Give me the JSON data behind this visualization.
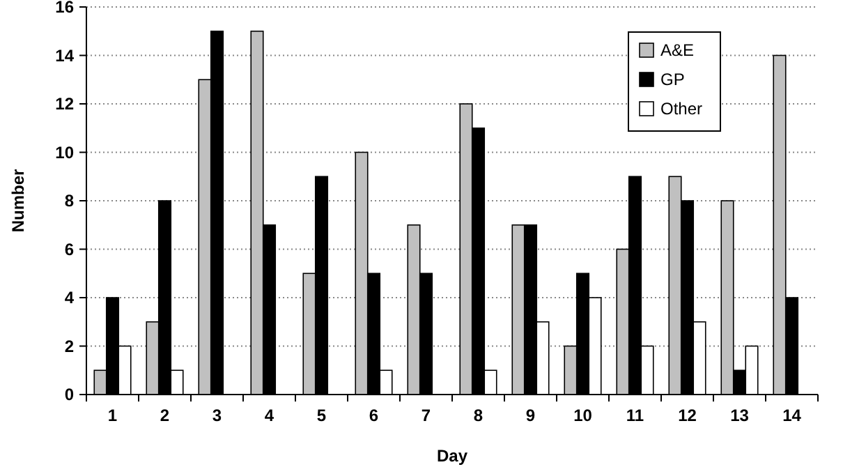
{
  "chart_data": {
    "type": "bar",
    "xlabel": "Day",
    "ylabel": "Number",
    "categories": [
      "1",
      "2",
      "3",
      "4",
      "5",
      "6",
      "7",
      "8",
      "9",
      "10",
      "11",
      "12",
      "13",
      "14"
    ],
    "series": [
      {
        "name": "A&E",
        "color": "#c0c0c0",
        "values": [
          1,
          3,
          13,
          15,
          5,
          10,
          7,
          12,
          7,
          2,
          6,
          9,
          8,
          14
        ]
      },
      {
        "name": "GP",
        "color": "#000000",
        "values": [
          4,
          8,
          15,
          7,
          9,
          5,
          5,
          11,
          7,
          5,
          9,
          8,
          1,
          4
        ]
      },
      {
        "name": "Other",
        "color": "#ffffff",
        "values": [
          2,
          1,
          0,
          0,
          0,
          1,
          0,
          1,
          3,
          4,
          2,
          3,
          2,
          0
        ]
      }
    ],
    "ylim": [
      0,
      16
    ],
    "yticks": [
      0,
      2,
      4,
      6,
      8,
      10,
      12,
      14,
      16
    ],
    "grid": "y",
    "legend": "top right"
  }
}
